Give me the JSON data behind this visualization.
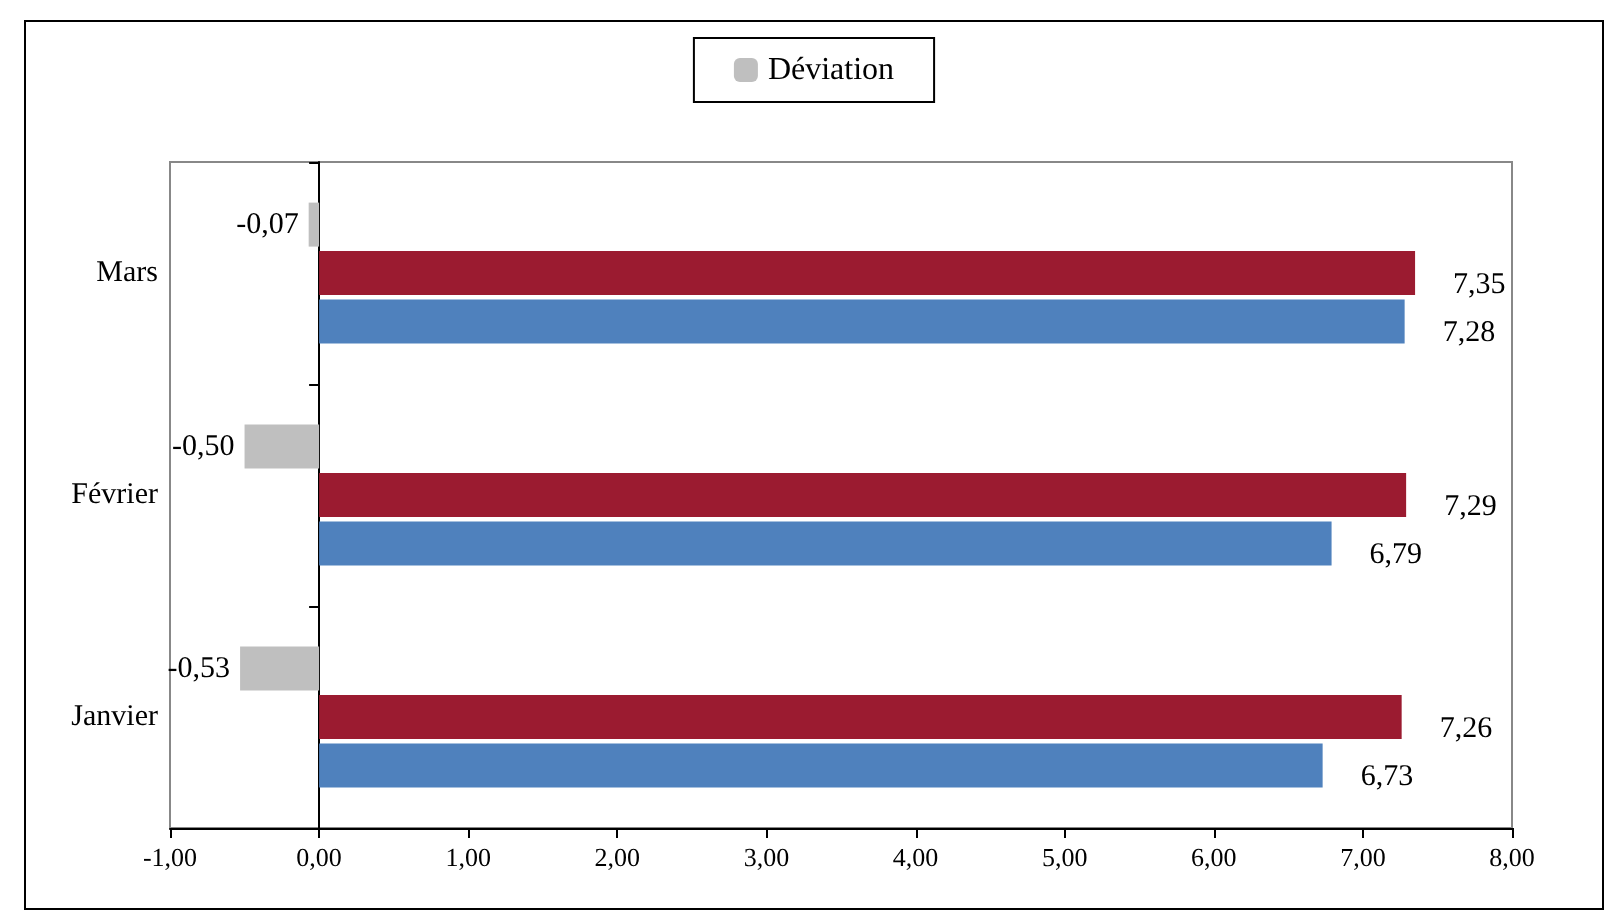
{
  "chart_data": {
    "type": "bar",
    "orientation": "horizontal",
    "categories": [
      "Mars",
      "Février",
      "Janvier"
    ],
    "series": [
      {
        "name": "Déviation",
        "color": "#bfbfbf",
        "values": [
          -0.07,
          -0.5,
          -0.53
        ],
        "value_labels": [
          "-0,07",
          "-0,50",
          "-0,53"
        ]
      },
      {
        "color": "#9b1b30",
        "values": [
          7.35,
          7.29,
          7.26
        ],
        "value_labels": [
          "7,35",
          "7,29",
          "7,26"
        ]
      },
      {
        "color": "#4f81bd",
        "values": [
          7.28,
          6.79,
          6.73
        ],
        "value_labels": [
          "7,28",
          "6,79",
          "6,73"
        ]
      }
    ],
    "xlim": [
      -1,
      8
    ],
    "xticks": [
      {
        "value": -1,
        "label": "-1,00"
      },
      {
        "value": 0,
        "label": "0,00"
      },
      {
        "value": 1,
        "label": "1,00"
      },
      {
        "value": 2,
        "label": "2,00"
      },
      {
        "value": 3,
        "label": "3,00"
      },
      {
        "value": 4,
        "label": "4,00"
      },
      {
        "value": 5,
        "label": "5,00"
      },
      {
        "value": 6,
        "label": "6,00"
      },
      {
        "value": 7,
        "label": "7,00"
      },
      {
        "value": 8,
        "label": "8,00"
      }
    ],
    "legend": "top"
  }
}
